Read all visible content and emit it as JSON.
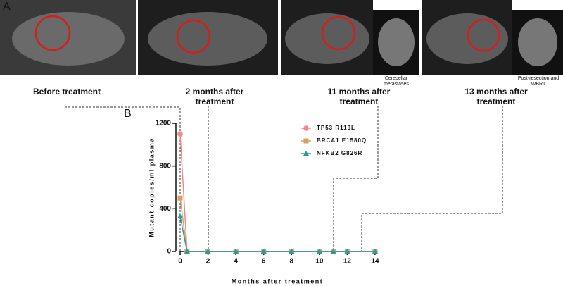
{
  "panel_a": {
    "label": "A",
    "insets": [
      "Cerebellar metastases",
      "Post-resection and WBRT"
    ],
    "timepoints": [
      "Before treatment",
      "2 months after treatment",
      "11 months after treatment",
      "13 months after treatment"
    ]
  },
  "panel_b": {
    "label": "B"
  },
  "chart_data": {
    "type": "line",
    "x_label": "Months after treatment",
    "y_label": "Mutant copies/ml plasma",
    "x": [
      0,
      0.5,
      2,
      4,
      6,
      8,
      10,
      11,
      12,
      14
    ],
    "series": [
      {
        "name": "TP53 R119L",
        "color": "#f08a8a",
        "marker": "circle",
        "values": [
          1100,
          0,
          0,
          0,
          0,
          0,
          0,
          0,
          0,
          0
        ]
      },
      {
        "name": "BRCA1 E1580Q",
        "color": "#d6a062",
        "marker": "square",
        "values": [
          500,
          0,
          0,
          0,
          0,
          0,
          0,
          0,
          0,
          0
        ]
      },
      {
        "name": "NFKB2 G826R",
        "color": "#2a9a9a",
        "marker": "triangle",
        "values": [
          330,
          0,
          0,
          0,
          0,
          0,
          0,
          0,
          0,
          0
        ]
      }
    ],
    "xlim": [
      0,
      14
    ],
    "xticks": [
      0,
      2,
      4,
      6,
      8,
      10,
      12,
      14
    ],
    "ylim": [
      0,
      1200
    ],
    "yticks": [
      0,
      400,
      800,
      1200
    ]
  }
}
